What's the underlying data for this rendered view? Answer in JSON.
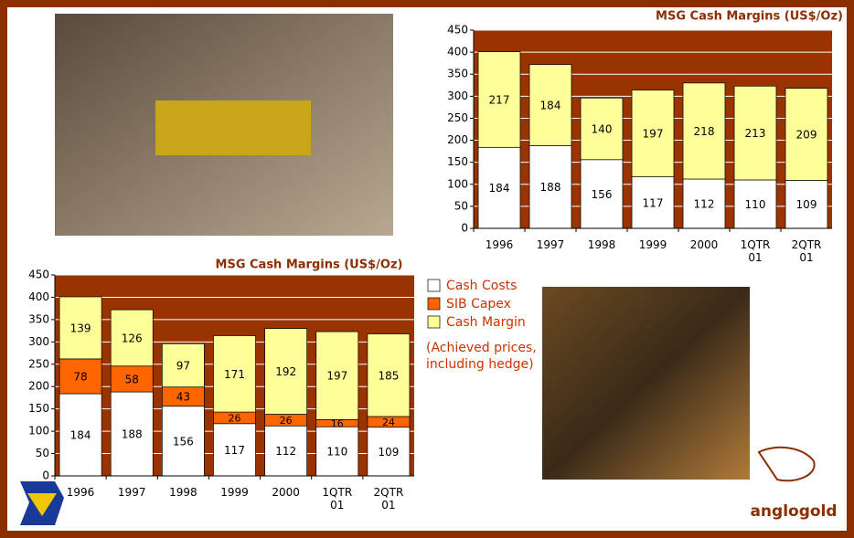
{
  "chart_data": [
    {
      "type": "stacked-bar",
      "title": "MSG Cash Margins (US$/Oz)",
      "categories": [
        "1996",
        "1997",
        "1998",
        "1999",
        "2000",
        "1QTR 01",
        "2QTR 01"
      ],
      "series": [
        {
          "name": "Cash Costs",
          "color": "#ffffff",
          "values": [
            184,
            188,
            156,
            117,
            112,
            110,
            109
          ]
        },
        {
          "name": "Cash Margin",
          "color": "#ffff99",
          "values": [
            217,
            184,
            140,
            197,
            218,
            213,
            209
          ]
        }
      ],
      "ylim": [
        0,
        450
      ],
      "yticks": [
        0,
        50,
        100,
        150,
        200,
        250,
        300,
        350,
        400,
        450
      ],
      "grid": true,
      "plot_background": "#993300"
    },
    {
      "type": "stacked-bar",
      "title": "MSG Cash Margins (US$/Oz)",
      "categories": [
        "1996",
        "1997",
        "1998",
        "1999",
        "2000",
        "1QTR 01",
        "2QTR 01"
      ],
      "series": [
        {
          "name": "Cash Costs",
          "color": "#ffffff",
          "values": [
            184,
            188,
            156,
            117,
            112,
            110,
            109
          ]
        },
        {
          "name": "SIB Capex",
          "color": "#ff6600",
          "values": [
            78,
            58,
            43,
            26,
            26,
            16,
            24
          ]
        },
        {
          "name": "Cash Margin",
          "color": "#ffff99",
          "values": [
            139,
            126,
            97,
            171,
            192,
            197,
            185
          ]
        }
      ],
      "note": "(Achieved prices, including hedge)",
      "ylim": [
        0,
        450
      ],
      "yticks": [
        0,
        50,
        100,
        150,
        200,
        250,
        300,
        350,
        400,
        450
      ],
      "grid": true,
      "plot_background": "#993300"
    }
  ],
  "logo": "anglogold"
}
